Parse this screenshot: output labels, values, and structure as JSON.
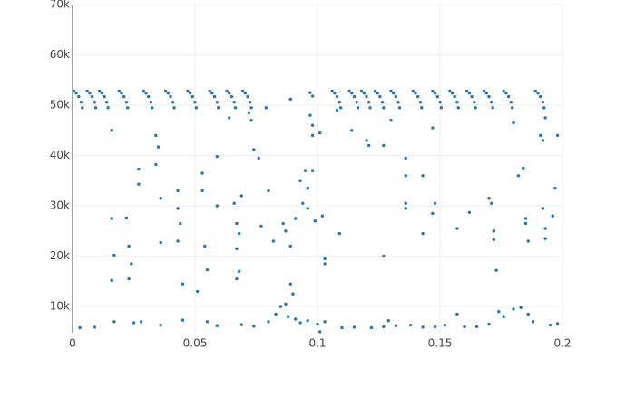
{
  "chart_data": {
    "type": "scatter",
    "color": "#1f77b4",
    "grid": true,
    "xlim": [
      0,
      0.2
    ],
    "ylim": [
      4800,
      70000
    ],
    "xticks": [
      0,
      0.05,
      0.1,
      0.15,
      0.2
    ],
    "yticks": [
      {
        "value": 10000,
        "label": "10k"
      },
      {
        "value": 20000,
        "label": "20k"
      },
      {
        "value": 30000,
        "label": "30k"
      },
      {
        "value": 40000,
        "label": "40k"
      },
      {
        "value": 50000,
        "label": "50k"
      },
      {
        "value": 60000,
        "label": "60k"
      },
      {
        "value": 70000,
        "label": "70k"
      }
    ],
    "x": [
      0.0005,
      0.0015,
      0.0025,
      0.0035,
      0.004,
      0.006,
      0.007,
      0.008,
      0.009,
      0.0095,
      0.011,
      0.012,
      0.013,
      0.014,
      0.0145,
      0.019,
      0.02,
      0.021,
      0.022,
      0.0225,
      0.029,
      0.03,
      0.031,
      0.032,
      0.0325,
      0.038,
      0.039,
      0.04,
      0.041,
      0.0415,
      0.047,
      0.048,
      0.049,
      0.05,
      0.0505,
      0.056,
      0.057,
      0.058,
      0.059,
      0.0595,
      0.063,
      0.064,
      0.065,
      0.066,
      0.0665,
      0.0695,
      0.0705,
      0.0715,
      0.0725,
      0.073,
      0.106,
      0.107,
      0.108,
      0.109,
      0.1095,
      0.113,
      0.114,
      0.115,
      0.116,
      0.1165,
      0.118,
      0.119,
      0.12,
      0.121,
      0.1215,
      0.1235,
      0.1245,
      0.1255,
      0.1265,
      0.127,
      0.13,
      0.131,
      0.132,
      0.133,
      0.1335,
      0.139,
      0.14,
      0.141,
      0.142,
      0.1425,
      0.147,
      0.148,
      0.149,
      0.15,
      0.1505,
      0.154,
      0.155,
      0.156,
      0.157,
      0.1575,
      0.161,
      0.162,
      0.163,
      0.164,
      0.1645,
      0.168,
      0.169,
      0.17,
      0.171,
      0.1715,
      0.176,
      0.177,
      0.178,
      0.179,
      0.1795,
      0.189,
      0.19,
      0.191,
      0.192,
      0.1925,
      0.003,
      0.009,
      0.017,
      0.025,
      0.028,
      0.036,
      0.045,
      0.055,
      0.059,
      0.069,
      0.074,
      0.08,
      0.083,
      0.085,
      0.087,
      0.088,
      0.09,
      0.091,
      0.093,
      0.096,
      0.1,
      0.101,
      0.103,
      0.11,
      0.115,
      0.122,
      0.127,
      0.129,
      0.132,
      0.138,
      0.143,
      0.148,
      0.152,
      0.157,
      0.16,
      0.165,
      0.17,
      0.174,
      0.176,
      0.18,
      0.183,
      0.186,
      0.188,
      0.195,
      0.198,
      0.016,
      0.016,
      0.017,
      0.016,
      0.022,
      0.023,
      0.024,
      0.023,
      0.027,
      0.027,
      0.034,
      0.035,
      0.034,
      0.036,
      0.036,
      0.043,
      0.043,
      0.044,
      0.043,
      0.045,
      0.051,
      0.053,
      0.053,
      0.054,
      0.055,
      0.059,
      0.059,
      0.064,
      0.066,
      0.067,
      0.068,
      0.067,
      0.068,
      0.067,
      0.069,
      0.072,
      0.073,
      0.074,
      0.076,
      0.077,
      0.079,
      0.08,
      0.082,
      0.086,
      0.087,
      0.089,
      0.089,
      0.091,
      0.093,
      0.094,
      0.095,
      0.096,
      0.096,
      0.097,
      0.098,
      0.098,
      0.098,
      0.099,
      0.101,
      0.102,
      0.103,
      0.103,
      0.109,
      0.108,
      0.114,
      0.12,
      0.121,
      0.127,
      0.127,
      0.13,
      0.136,
      0.136,
      0.136,
      0.136,
      0.143,
      0.143,
      0.147,
      0.148,
      0.147,
      0.157,
      0.162,
      0.17,
      0.171,
      0.172,
      0.172,
      0.173,
      0.18,
      0.182,
      0.184,
      0.185,
      0.185,
      0.186,
      0.191,
      0.192,
      0.193,
      0.192,
      0.193,
      0.193,
      0.196,
      0.197,
      0.198,
      0.089,
      0.097,
      0.098
    ],
    "y": [
      52800,
      52400,
      51700,
      50600,
      49500,
      52800,
      52400,
      51700,
      50600,
      49500,
      52800,
      52400,
      51700,
      50600,
      49500,
      52800,
      52400,
      51700,
      50600,
      49500,
      52800,
      52400,
      51700,
      50600,
      49500,
      52800,
      52400,
      51700,
      50600,
      49500,
      52800,
      52400,
      51700,
      50600,
      49500,
      52800,
      52400,
      51700,
      50600,
      49500,
      52800,
      52400,
      51700,
      50600,
      49500,
      52800,
      52400,
      51700,
      50600,
      49500,
      52800,
      52400,
      51700,
      50600,
      49500,
      52800,
      52400,
      51700,
      50600,
      49500,
      52800,
      52400,
      51700,
      50600,
      49500,
      52800,
      52400,
      51700,
      50600,
      49500,
      52800,
      52400,
      51700,
      50600,
      49500,
      52800,
      52400,
      51700,
      50600,
      49500,
      52800,
      52400,
      51700,
      50600,
      49500,
      52800,
      52400,
      51700,
      50600,
      49500,
      52800,
      52400,
      51700,
      50600,
      49500,
      52800,
      52400,
      51700,
      50600,
      49500,
      52800,
      52400,
      51700,
      50600,
      49500,
      52800,
      52400,
      51700,
      50600,
      49500,
      5800,
      5900,
      7000,
      6800,
      7000,
      6300,
      7300,
      7000,
      6200,
      6400,
      6100,
      7000,
      8500,
      10000,
      10500,
      8000,
      12500,
      7500,
      6800,
      7200,
      6500,
      5000,
      7000,
      5800,
      5900,
      5800,
      6000,
      7200,
      6200,
      6300,
      5900,
      6000,
      6300,
      8500,
      6000,
      6000,
      6500,
      9000,
      8000,
      9500,
      9800,
      8500,
      7000,
      6300,
      6600,
      45000,
      27500,
      20200,
      15200,
      27600,
      22000,
      18500,
      15500,
      37300,
      34300,
      44000,
      41700,
      38200,
      31500,
      22700,
      33000,
      29500,
      26500,
      23000,
      14500,
      13000,
      36500,
      33000,
      22000,
      17300,
      39800,
      30000,
      47500,
      30500,
      26500,
      24500,
      21500,
      17000,
      15500,
      32000,
      48500,
      47000,
      41200,
      39500,
      26000,
      49500,
      33000,
      23000,
      26500,
      25000,
      22000,
      14500,
      27500,
      35000,
      30500,
      37000,
      33500,
      29500,
      48000,
      46000,
      44000,
      37000,
      27000,
      44500,
      28000,
      19500,
      18500,
      24500,
      49000,
      45000,
      43000,
      42000,
      20000,
      42000,
      47000,
      39500,
      36000,
      30500,
      29500,
      36000,
      24500,
      45500,
      30500,
      28500,
      25500,
      28700,
      31500,
      30500,
      25000,
      23300,
      17200,
      46500,
      36000,
      37500,
      26500,
      27500,
      23000,
      44000,
      43000,
      47500,
      29500,
      25500,
      23500,
      28000,
      33500,
      44000,
      51200,
      52500,
      51800
    ]
  }
}
